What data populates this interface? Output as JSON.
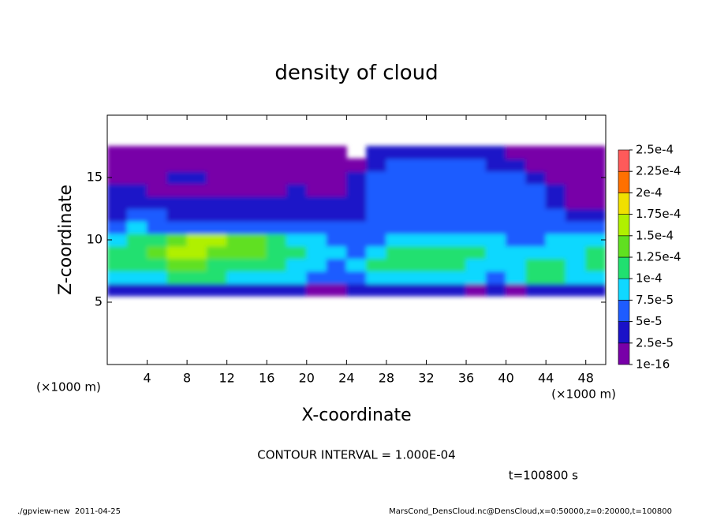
{
  "chart_data": {
    "type": "contour",
    "title": "density of cloud",
    "x_label": "X-coordinate",
    "y_label": "Z-coordinate",
    "x_unit": "(×1000 m)",
    "y_unit": "(×1000 m)",
    "contour_note": "CONTOUR INTERVAL = 1.000E-04",
    "time_note": "t=100800 s",
    "footer_left": "./gpview-new  2011-04-25",
    "footer_right": "MarsCond_DensCloud.nc@DensCloud,x=0:50000,z=0:20000,t=100800",
    "xlim": [
      0,
      50
    ],
    "ylim": [
      0,
      20
    ],
    "xticks": [
      4,
      8,
      12,
      16,
      20,
      24,
      28,
      32,
      36,
      40,
      44,
      48
    ],
    "yticks": [
      5,
      10,
      15
    ],
    "levels": [
      {
        "value": 1e-16,
        "label": "1e-16"
      },
      {
        "value": 2.5e-05,
        "label": "2.5e-5"
      },
      {
        "value": 5e-05,
        "label": "5e-5"
      },
      {
        "value": 7.5e-05,
        "label": "7.5e-5"
      },
      {
        "value": 0.0001,
        "label": "1e-4"
      },
      {
        "value": 0.000125,
        "label": "1.25e-4"
      },
      {
        "value": 0.00015,
        "label": "1.5e-4"
      },
      {
        "value": 0.000175,
        "label": "1.75e-4"
      },
      {
        "value": 0.0002,
        "label": "2e-4"
      },
      {
        "value": 0.000225,
        "label": "2.25e-4"
      },
      {
        "value": 0.00025,
        "label": "2.5e-4"
      }
    ],
    "colors": [
      "#7800a8",
      "#1a12c8",
      "#1e5cff",
      "#10d8ff",
      "#20e070",
      "#60e020",
      "#b0f000",
      "#f0e000",
      "#ff7000",
      "#ff5a5a"
    ],
    "x": [
      1,
      3,
      5,
      7,
      9,
      11,
      13,
      15,
      17,
      19,
      21,
      23,
      25,
      27,
      29,
      31,
      33,
      35,
      37,
      39,
      41,
      43,
      45,
      47,
      49
    ],
    "z": [
      6,
      7,
      8,
      9,
      10,
      11,
      12,
      13,
      14,
      15,
      16,
      17
    ],
    "values": [
      [
        3e-05,
        4e-05,
        4e-05,
        4e-05,
        4e-05,
        4e-05,
        3e-05,
        3e-05,
        3e-05,
        3e-05,
        2e-05,
        2e-05,
        3e-05,
        3e-05,
        3e-05,
        3e-05,
        3e-05,
        3e-05,
        2e-05,
        3e-05,
        2e-05,
        3e-05,
        3e-05,
        3e-05,
        3e-05
      ],
      [
        8e-05,
        9e-05,
        8e-05,
        0.00011,
        0.00011,
        0.0001,
        9e-05,
        8e-05,
        8e-05,
        8e-05,
        7e-05,
        7e-05,
        7e-05,
        8e-05,
        8e-05,
        8e-05,
        8e-05,
        8e-05,
        8e-05,
        7e-05,
        8e-05,
        0.0001,
        0.0001,
        8e-05,
        9e-05
      ],
      [
        0.00011,
        0.00011,
        0.00012,
        0.00013,
        0.00013,
        0.00012,
        0.00012,
        0.00011,
        0.0001,
        9e-05,
        8e-05,
        7e-05,
        8e-05,
        0.00011,
        0.00012,
        0.00012,
        0.00011,
        0.00011,
        9e-05,
        8e-05,
        9e-05,
        0.00011,
        0.00011,
        9e-05,
        0.00011
      ],
      [
        0.00011,
        0.00012,
        0.00013,
        0.00015,
        0.00016,
        0.00014,
        0.00013,
        0.00013,
        0.00012,
        0.0001,
        8e-05,
        8e-05,
        7e-05,
        9e-05,
        0.00011,
        0.00012,
        0.00012,
        0.00011,
        0.00011,
        9e-05,
        8e-05,
        9e-05,
        9e-05,
        8e-05,
        0.00011
      ],
      [
        9e-05,
        0.0001,
        0.00012,
        0.00014,
        0.00015,
        0.00015,
        0.00014,
        0.00013,
        0.00011,
        9e-05,
        8e-05,
        7e-05,
        6e-05,
        7e-05,
        8e-05,
        8e-05,
        8e-05,
        8e-05,
        8e-05,
        8e-05,
        7e-05,
        7e-05,
        8e-05,
        8e-05,
        9e-05
      ],
      [
        7e-05,
        8e-05,
        7e-05,
        7e-05,
        7e-05,
        6e-05,
        6e-05,
        6e-05,
        6e-05,
        6e-05,
        6e-05,
        5e-05,
        5e-05,
        5e-05,
        6e-05,
        6e-05,
        6e-05,
        7e-05,
        7e-05,
        7e-05,
        6e-05,
        6e-05,
        7e-05,
        6e-05,
        6e-05
      ],
      [
        4e-05,
        5e-05,
        5e-05,
        4e-05,
        4e-05,
        4e-05,
        4e-05,
        4e-05,
        4e-05,
        4e-05,
        4e-05,
        4e-05,
        4e-05,
        5e-05,
        6e-05,
        5e-05,
        6e-05,
        6e-05,
        7e-05,
        6e-05,
        6e-05,
        6e-05,
        5e-05,
        4e-05,
        3e-05
      ],
      [
        3e-05,
        4e-05,
        3e-05,
        3e-05,
        3e-05,
        3e-05,
        3e-05,
        3e-05,
        3e-05,
        3e-05,
        3e-05,
        3e-05,
        4e-05,
        5e-05,
        6e-05,
        6e-05,
        7e-05,
        6e-05,
        6e-05,
        7e-05,
        6e-05,
        5e-05,
        4e-05,
        2e-05,
        2e-05
      ],
      [
        3e-05,
        3e-05,
        2e-05,
        2e-05,
        2e-05,
        2e-05,
        2e-05,
        2e-05,
        2e-05,
        3e-05,
        2e-05,
        2e-05,
        4e-05,
        5e-05,
        6e-05,
        7e-05,
        6e-05,
        5e-05,
        6e-05,
        6e-05,
        5e-05,
        5e-05,
        3e-05,
        1e-05,
        1e-05
      ],
      [
        2e-05,
        2e-05,
        2e-05,
        3e-05,
        3e-05,
        2e-05,
        2e-05,
        2e-05,
        2e-05,
        2e-05,
        2e-05,
        2e-05,
        4e-05,
        5e-05,
        6e-05,
        6e-05,
        5e-05,
        6e-05,
        6e-05,
        5e-05,
        5e-05,
        4e-05,
        2e-05,
        1e-05,
        1e-05
      ],
      [
        1e-05,
        1e-05,
        1e-05,
        2e-05,
        2e-05,
        2e-05,
        1e-05,
        1e-05,
        1e-05,
        1e-05,
        1e-05,
        1e-05,
        2e-05,
        4e-05,
        5e-05,
        5e-05,
        5e-05,
        5e-05,
        5e-05,
        4e-05,
        4e-05,
        2e-05,
        1e-05,
        1e-05,
        1e-05
      ],
      [
        1e-05,
        1e-05,
        1e-05,
        1e-05,
        1e-05,
        1e-05,
        1e-05,
        1e-05,
        1e-05,
        1e-05,
        1e-05,
        1e-05,
        null,
        3e-05,
        4e-05,
        4e-05,
        4e-05,
        4e-05,
        4e-05,
        3e-05,
        2e-05,
        1e-05,
        1e-05,
        1e-05,
        1e-05
      ]
    ]
  }
}
